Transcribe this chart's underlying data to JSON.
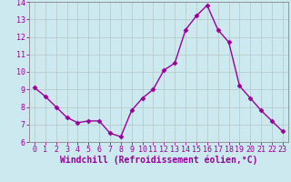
{
  "x": [
    0,
    1,
    2,
    3,
    4,
    5,
    6,
    7,
    8,
    9,
    10,
    11,
    12,
    13,
    14,
    15,
    16,
    17,
    18,
    19,
    20,
    21,
    22,
    23
  ],
  "y": [
    9.1,
    8.6,
    8.0,
    7.4,
    7.1,
    7.2,
    7.2,
    6.5,
    6.3,
    7.8,
    8.5,
    9.0,
    10.1,
    10.5,
    12.4,
    13.2,
    13.8,
    12.4,
    11.7,
    9.2,
    8.5,
    7.8,
    7.2,
    6.6
  ],
  "line_color": "#990099",
  "marker": "D",
  "marker_size": 2.5,
  "bg_color": "#cce9f0",
  "grid_color": "#bbcccc",
  "xlabel": "Windchill (Refroidissement éolien,°C)",
  "xlabel_color": "#990099",
  "tick_color": "#990099",
  "spine_color": "#888888",
  "ylim": [
    6,
    14
  ],
  "xlim": [
    -0.5,
    23.5
  ],
  "yticks": [
    6,
    7,
    8,
    9,
    10,
    11,
    12,
    13,
    14
  ],
  "xticks": [
    0,
    1,
    2,
    3,
    4,
    5,
    6,
    7,
    8,
    9,
    10,
    11,
    12,
    13,
    14,
    15,
    16,
    17,
    18,
    19,
    20,
    21,
    22,
    23
  ],
  "tick_fontsize": 6,
  "xlabel_fontsize": 7,
  "linewidth": 1.0
}
